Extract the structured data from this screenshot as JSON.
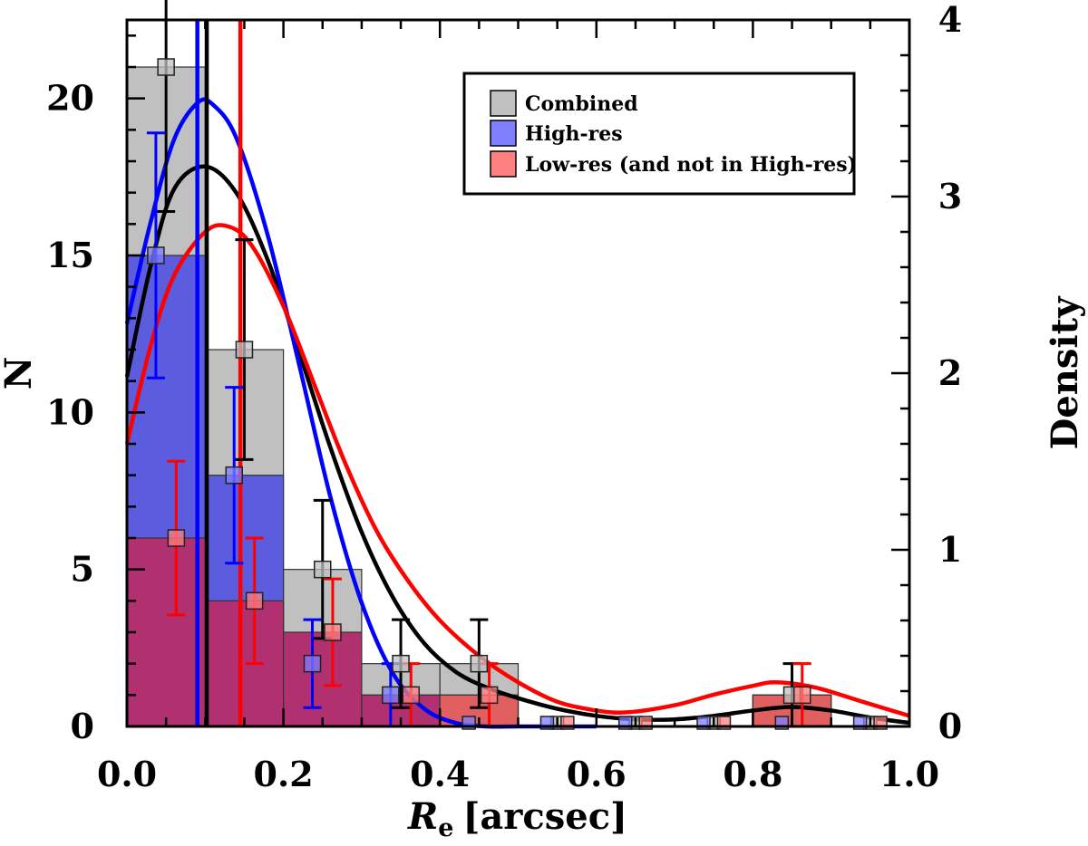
{
  "chart_data": {
    "type": "bar",
    "xlabel": "R",
    "xlabel_subscript": "e",
    "xlabel_units": "[arcsec]",
    "ylabel": "N",
    "y2label": "Density",
    "xlim": [
      0.0,
      1.0
    ],
    "ylim": [
      0,
      22.5
    ],
    "y2lim": [
      0,
      4
    ],
    "xticks": [
      "0.0",
      "0.2",
      "0.4",
      "0.6",
      "0.8",
      "1.0"
    ],
    "yticks": [
      "0",
      "5",
      "10",
      "15",
      "20"
    ],
    "y2ticks": [
      "0",
      "1",
      "2",
      "3",
      "4"
    ],
    "bin_edges": [
      0.0,
      0.1,
      0.2,
      0.3,
      0.4,
      0.5,
      0.6,
      0.7,
      0.8,
      0.9,
      1.0
    ],
    "legend": {
      "position": "top-right",
      "entries": [
        {
          "label": "Combined",
          "color": "#c0c0c0"
        },
        {
          "label": "High-res",
          "color": "#7f7fff"
        },
        {
          "label": "Low-res (and not in High-res)",
          "color": "#ff8080"
        }
      ]
    },
    "series": [
      {
        "name": "Combined",
        "color": "#c0c0c0",
        "counts": [
          21,
          12,
          5,
          2,
          2,
          0,
          0,
          0,
          1,
          0
        ],
        "marker_x": [
          0.05,
          0.15,
          0.25,
          0.35,
          0.45,
          0.55,
          0.65,
          0.75,
          0.85,
          0.95
        ],
        "errors": [
          4.6,
          3.5,
          2.2,
          1.4,
          1.4,
          0,
          0,
          0,
          1.0,
          0
        ],
        "error_color": "#000000"
      },
      {
        "name": "High-res",
        "color": "#7f7fff",
        "counts": [
          15,
          8,
          2,
          1,
          0,
          0,
          0,
          0,
          0,
          0
        ],
        "marker_x": [
          0.037,
          0.137,
          0.237,
          0.337,
          0.437,
          0.537,
          0.637,
          0.737,
          0.837,
          0.937
        ],
        "errors": [
          3.9,
          2.8,
          1.4,
          1.0,
          0,
          0,
          0,
          0,
          0,
          0
        ],
        "error_color": "#0000ff"
      },
      {
        "name": "Low-res (and not in High-res)",
        "color": "#ff8080",
        "counts": [
          6,
          4,
          3,
          1,
          1,
          0,
          0,
          0,
          1,
          0
        ],
        "marker_x": [
          0.063,
          0.163,
          0.263,
          0.363,
          0.463,
          0.563,
          0.663,
          0.763,
          0.863,
          0.963
        ],
        "errors": [
          2.45,
          2.0,
          1.7,
          1.0,
          1.0,
          0,
          0,
          0,
          1.0,
          0
        ],
        "error_color": "#ff0000"
      }
    ],
    "density_curves": [
      {
        "name": "Combined",
        "color": "#000000",
        "x": [
          0.0,
          0.03,
          0.06,
          0.1,
          0.14,
          0.18,
          0.22,
          0.26,
          0.3,
          0.34,
          0.38,
          0.42,
          0.46,
          0.5,
          0.55,
          0.6,
          0.65,
          0.7,
          0.75,
          0.8,
          0.85,
          0.9,
          0.95,
          1.0
        ],
        "y": [
          1.98,
          2.6,
          3.04,
          3.17,
          3.02,
          2.64,
          2.12,
          1.58,
          1.1,
          0.73,
          0.47,
          0.31,
          0.22,
          0.16,
          0.1,
          0.06,
          0.04,
          0.04,
          0.06,
          0.09,
          0.11,
          0.09,
          0.05,
          0.02
        ]
      },
      {
        "name": "High-res",
        "color": "#0000ff",
        "x": [
          0.0,
          0.03,
          0.06,
          0.09,
          0.11,
          0.14,
          0.18,
          0.22,
          0.26,
          0.3,
          0.34,
          0.38,
          0.42,
          0.46,
          0.5,
          0.55,
          0.6
        ],
        "y": [
          2.28,
          2.85,
          3.32,
          3.53,
          3.52,
          3.33,
          2.78,
          2.05,
          1.3,
          0.7,
          0.3,
          0.1,
          0.02,
          0.0,
          0.0,
          0.0,
          0.0
        ]
      },
      {
        "name": "Low-res (and not in High-res)",
        "color": "#ff0000",
        "x": [
          0.0,
          0.03,
          0.06,
          0.1,
          0.13,
          0.16,
          0.2,
          0.24,
          0.28,
          0.32,
          0.36,
          0.4,
          0.45,
          0.5,
          0.55,
          0.6,
          0.64,
          0.7,
          0.75,
          0.8,
          0.83,
          0.88,
          0.94,
          1.0
        ],
        "y": [
          1.6,
          2.15,
          2.55,
          2.8,
          2.83,
          2.72,
          2.38,
          1.93,
          1.48,
          1.1,
          0.82,
          0.6,
          0.4,
          0.25,
          0.14,
          0.09,
          0.08,
          0.12,
          0.18,
          0.23,
          0.25,
          0.22,
          0.14,
          0.06
        ]
      }
    ],
    "vertical_lines": [
      {
        "name": "High-res",
        "x": 0.09,
        "color": "#0000ff"
      },
      {
        "name": "Combined",
        "x": 0.102,
        "color": "#000000"
      },
      {
        "name": "Low-res",
        "x": 0.145,
        "color": "#ff0000"
      }
    ]
  }
}
